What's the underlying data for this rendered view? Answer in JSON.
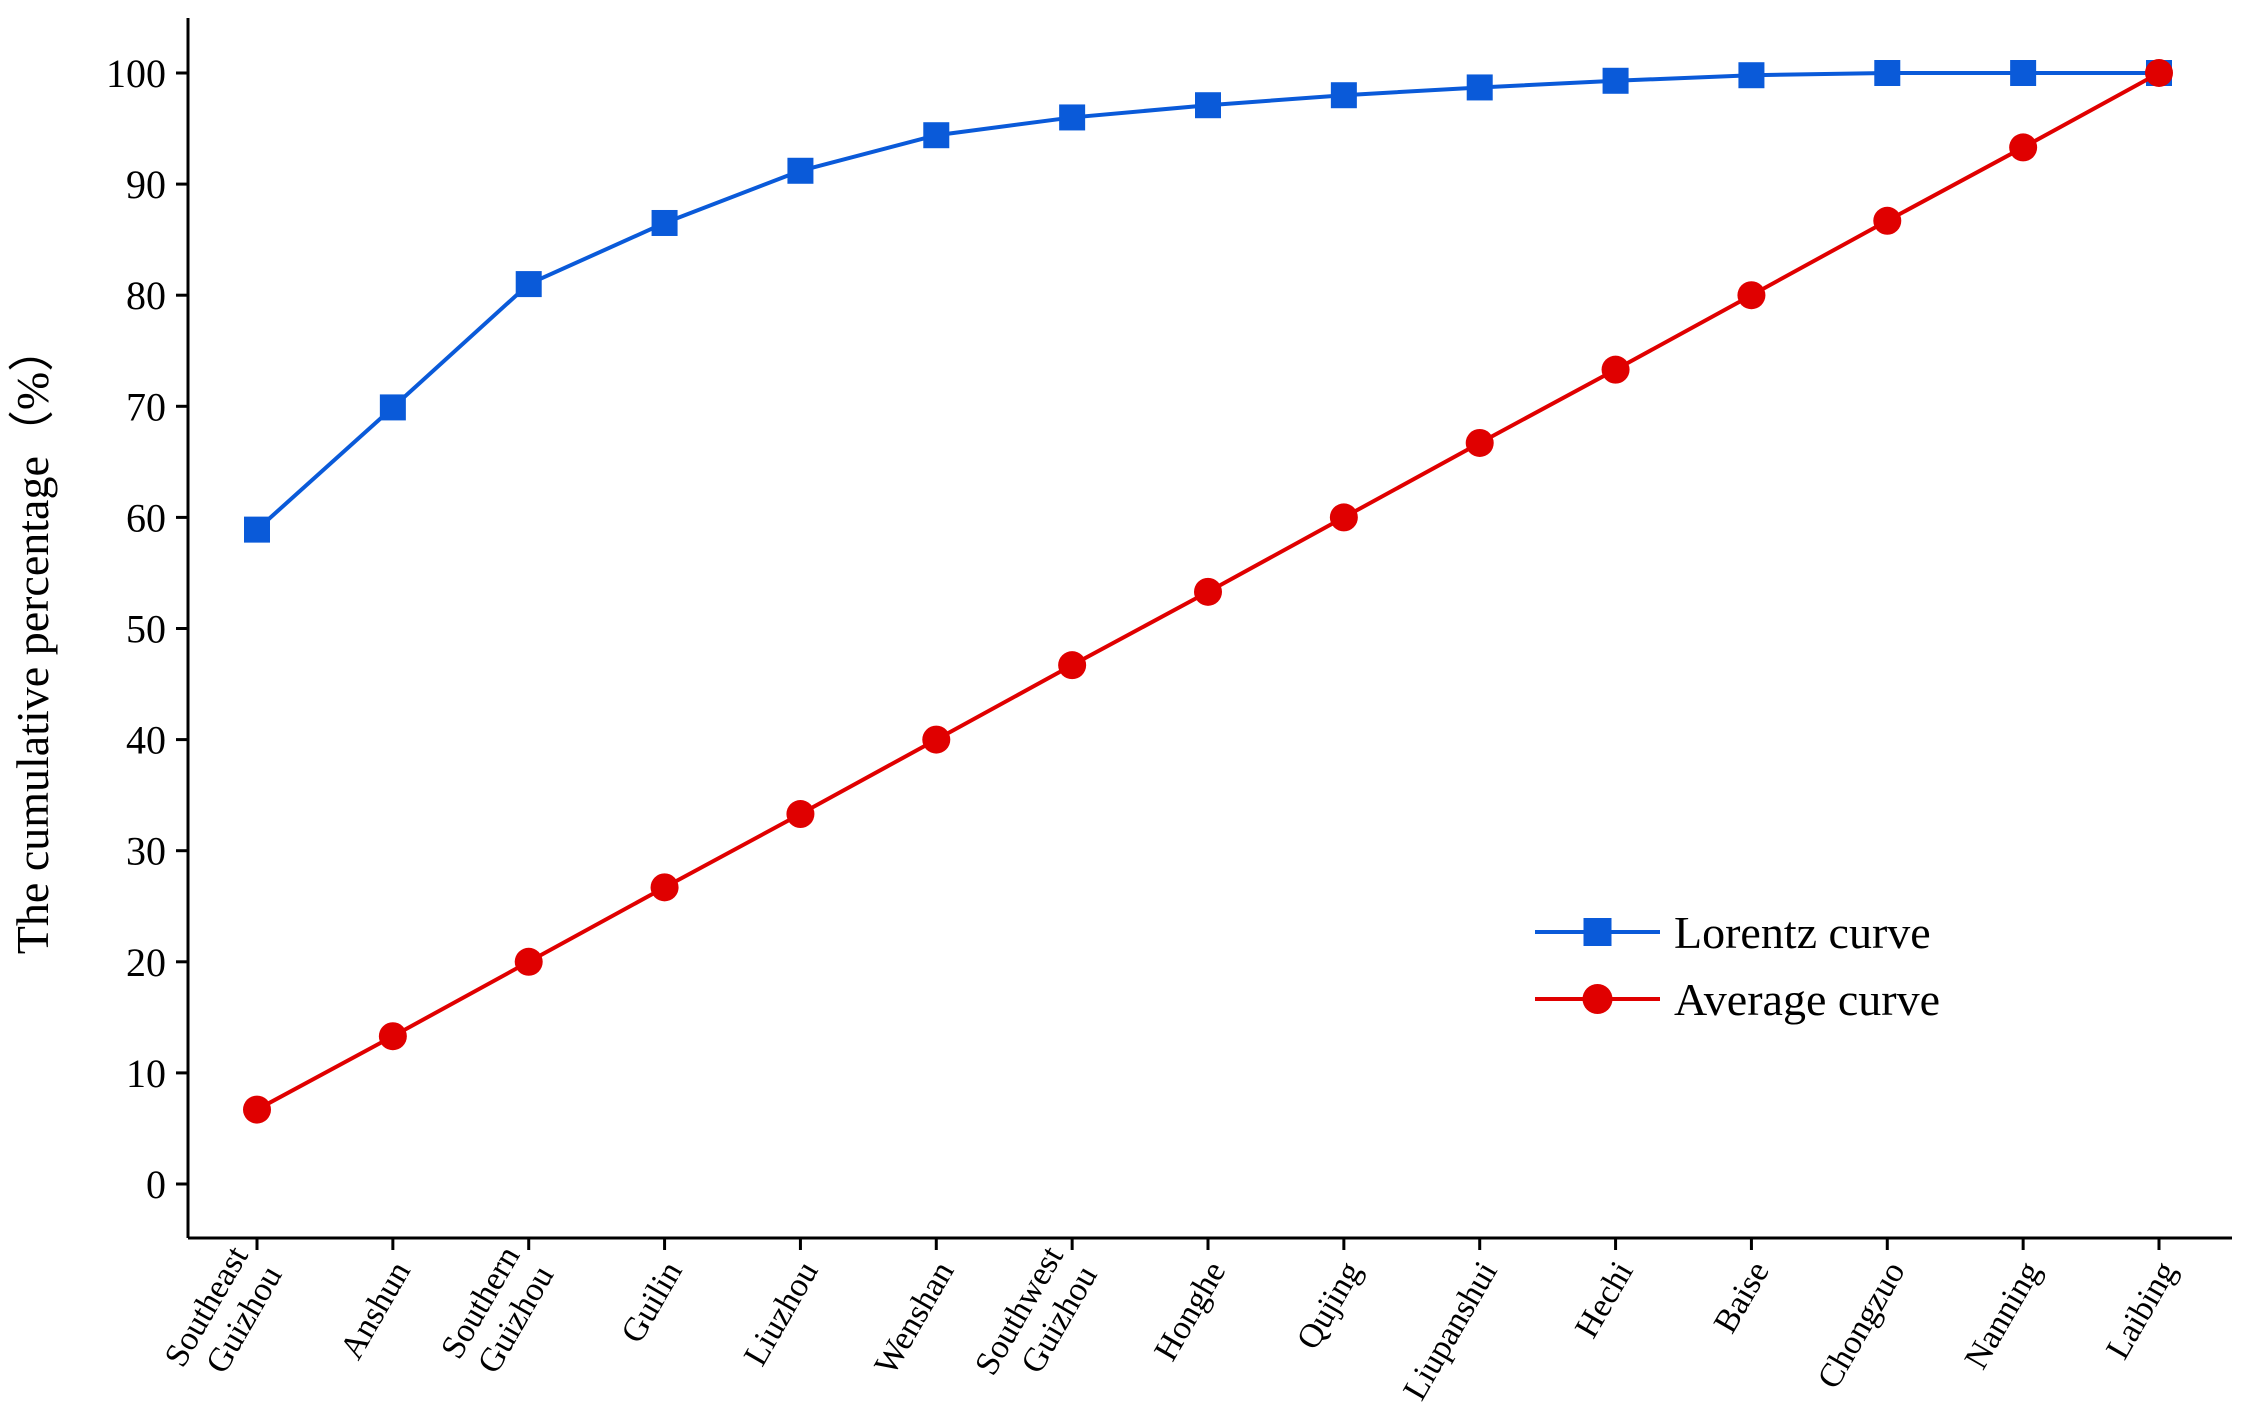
{
  "chart_data": {
    "type": "line",
    "title": "",
    "xlabel": "",
    "ylabel": "The cumulative percentage（%）",
    "ylim": [
      -5,
      105
    ],
    "yticks": [
      0,
      10,
      20,
      30,
      40,
      50,
      60,
      70,
      80,
      90,
      100
    ],
    "grid": false,
    "legend_position": "lower-right",
    "categories": [
      [
        "Southeast",
        "Guizhou"
      ],
      [
        "Anshun"
      ],
      [
        "Southern",
        "Guizhou"
      ],
      [
        "Guilin"
      ],
      [
        "Liuzhou"
      ],
      [
        "Wenshan"
      ],
      [
        "Southwest",
        "Guizhou"
      ],
      [
        "Honghe"
      ],
      [
        "Qujing"
      ],
      [
        "Liupanshui"
      ],
      [
        "Hechi"
      ],
      [
        "Baise"
      ],
      [
        "Chongzuo"
      ],
      [
        "Nanning"
      ],
      [
        "Laibing"
      ]
    ],
    "series": [
      {
        "name": "Lorentz curve",
        "color": "#0a5ad9",
        "marker": "square",
        "values": [
          58.9,
          69.9,
          81.0,
          86.5,
          91.2,
          94.4,
          96.0,
          97.1,
          98.0,
          98.7,
          99.3,
          99.8,
          100.0,
          100.0,
          100.0
        ]
      },
      {
        "name": "Average curve",
        "color": "#e00000",
        "marker": "circle",
        "values": [
          6.7,
          13.3,
          20.0,
          26.7,
          33.3,
          40.0,
          46.7,
          53.3,
          60.0,
          66.7,
          73.3,
          80.0,
          86.7,
          93.3,
          100.0
        ]
      }
    ]
  }
}
